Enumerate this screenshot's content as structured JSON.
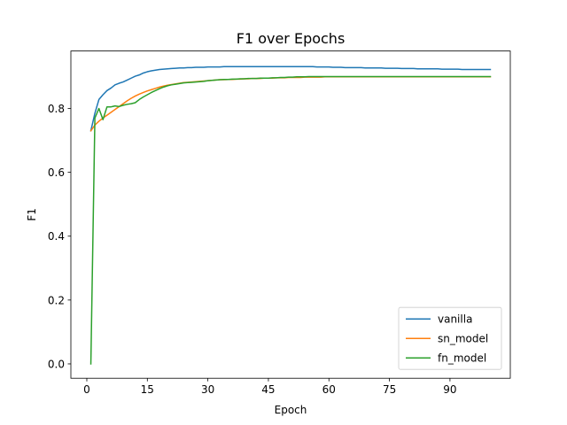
{
  "chart_data": {
    "type": "line",
    "title": "F1 over Epochs",
    "xlabel": "Epoch",
    "ylabel": "F1",
    "xlim": [
      -3.95,
      104.95
    ],
    "ylim": [
      -0.045,
      0.98
    ],
    "xticks": [
      0,
      15,
      30,
      45,
      60,
      75,
      90
    ],
    "yticks": [
      0.0,
      0.2,
      0.4,
      0.6,
      0.8
    ],
    "ytick_labels": [
      "0.0",
      "0.2",
      "0.4",
      "0.6",
      "0.8"
    ],
    "grid": false,
    "legend": "lower-right",
    "x": [
      1,
      2,
      3,
      4,
      5,
      6,
      7,
      8,
      9,
      10,
      11,
      12,
      13,
      14,
      15,
      16,
      17,
      18,
      19,
      20,
      21,
      22,
      23,
      24,
      25,
      26,
      27,
      28,
      29,
      30,
      31,
      32,
      33,
      34,
      35,
      36,
      37,
      38,
      39,
      40,
      41,
      42,
      43,
      44,
      45,
      46,
      47,
      48,
      49,
      50,
      51,
      52,
      53,
      54,
      55,
      56,
      57,
      58,
      59,
      60,
      61,
      62,
      63,
      64,
      65,
      66,
      67,
      68,
      69,
      70,
      71,
      72,
      73,
      74,
      75,
      76,
      77,
      78,
      79,
      80,
      81,
      82,
      83,
      84,
      85,
      86,
      87,
      88,
      89,
      90,
      91,
      92,
      93,
      94,
      95,
      96,
      97,
      98,
      99,
      100
    ],
    "series": [
      {
        "name": "vanilla",
        "color": "#1f77b4",
        "values": [
          0.73,
          0.785,
          0.828,
          0.843,
          0.856,
          0.864,
          0.874,
          0.879,
          0.883,
          0.889,
          0.895,
          0.901,
          0.905,
          0.911,
          0.915,
          0.918,
          0.92,
          0.922,
          0.923,
          0.924,
          0.925,
          0.926,
          0.927,
          0.927,
          0.928,
          0.928,
          0.929,
          0.929,
          0.929,
          0.93,
          0.93,
          0.93,
          0.93,
          0.931,
          0.931,
          0.931,
          0.931,
          0.931,
          0.931,
          0.931,
          0.931,
          0.931,
          0.931,
          0.931,
          0.931,
          0.931,
          0.931,
          0.931,
          0.931,
          0.931,
          0.931,
          0.931,
          0.931,
          0.931,
          0.931,
          0.931,
          0.93,
          0.93,
          0.93,
          0.93,
          0.929,
          0.929,
          0.929,
          0.928,
          0.928,
          0.928,
          0.928,
          0.928,
          0.927,
          0.927,
          0.927,
          0.927,
          0.927,
          0.926,
          0.926,
          0.926,
          0.926,
          0.925,
          0.925,
          0.925,
          0.925,
          0.924,
          0.924,
          0.924,
          0.924,
          0.924,
          0.924,
          0.923,
          0.923,
          0.923,
          0.923,
          0.923,
          0.922,
          0.922,
          0.922,
          0.922,
          0.922,
          0.922,
          0.922,
          0.922
        ]
      },
      {
        "name": "sn_model",
        "color": "#ff7f0e",
        "values": [
          0.73,
          0.748,
          0.76,
          0.77,
          0.779,
          0.788,
          0.797,
          0.806,
          0.815,
          0.824,
          0.832,
          0.839,
          0.845,
          0.85,
          0.855,
          0.859,
          0.863,
          0.867,
          0.87,
          0.873,
          0.875,
          0.877,
          0.879,
          0.881,
          0.882,
          0.883,
          0.884,
          0.885,
          0.886,
          0.887,
          0.888,
          0.889,
          0.89,
          0.89,
          0.891,
          0.891,
          0.892,
          0.892,
          0.893,
          0.893,
          0.894,
          0.894,
          0.894,
          0.895,
          0.895,
          0.895,
          0.896,
          0.896,
          0.896,
          0.897,
          0.897,
          0.897,
          0.897,
          0.898,
          0.898,
          0.898,
          0.898,
          0.898,
          0.899,
          0.899,
          0.899,
          0.899,
          0.899,
          0.899,
          0.899,
          0.899,
          0.899,
          0.899,
          0.899,
          0.899,
          0.899,
          0.899,
          0.899,
          0.899,
          0.899,
          0.899,
          0.899,
          0.899,
          0.899,
          0.899,
          0.899,
          0.899,
          0.899,
          0.899,
          0.899,
          0.899,
          0.899,
          0.899,
          0.899,
          0.899,
          0.899,
          0.899,
          0.899,
          0.899,
          0.899,
          0.899,
          0.899,
          0.899,
          0.899,
          0.899
        ]
      },
      {
        "name": "fn_model",
        "color": "#2ca02c",
        "values": [
          0.0,
          0.77,
          0.8,
          0.765,
          0.805,
          0.805,
          0.808,
          0.806,
          0.81,
          0.813,
          0.815,
          0.818,
          0.828,
          0.836,
          0.843,
          0.85,
          0.856,
          0.862,
          0.867,
          0.871,
          0.874,
          0.876,
          0.878,
          0.88,
          0.881,
          0.882,
          0.883,
          0.884,
          0.885,
          0.887,
          0.888,
          0.889,
          0.89,
          0.891,
          0.891,
          0.892,
          0.892,
          0.893,
          0.893,
          0.894,
          0.894,
          0.894,
          0.895,
          0.895,
          0.895,
          0.896,
          0.896,
          0.897,
          0.897,
          0.898,
          0.898,
          0.899,
          0.899,
          0.899,
          0.9,
          0.9,
          0.9,
          0.9,
          0.9,
          0.9,
          0.9,
          0.9,
          0.9,
          0.9,
          0.9,
          0.9,
          0.9,
          0.9,
          0.9,
          0.9,
          0.9,
          0.9,
          0.9,
          0.9,
          0.9,
          0.9,
          0.9,
          0.9,
          0.9,
          0.9,
          0.9,
          0.9,
          0.9,
          0.9,
          0.9,
          0.9,
          0.9,
          0.9,
          0.9,
          0.9,
          0.9,
          0.9,
          0.9,
          0.9,
          0.9,
          0.9,
          0.9,
          0.9,
          0.9,
          0.9
        ]
      }
    ]
  }
}
